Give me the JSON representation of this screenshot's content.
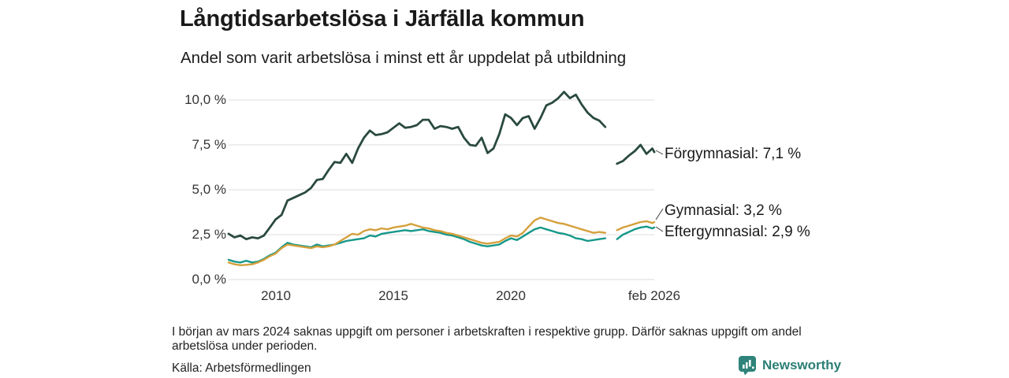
{
  "header": {
    "title": "Långtidsarbetslösa i Järfälla kommun",
    "subtitle": "Andel som varit arbetslösa i minst ett år uppdelat på utbildning"
  },
  "chart_data": {
    "type": "line",
    "title": "Långtidsarbetslösa i Järfälla kommun",
    "subtitle": "Andel som varit arbetslösa i minst ett år uppdelat på utbildning",
    "x_unit": "decimal_year",
    "xlim": [
      2008.0,
      2026.083
    ],
    "ylim": [
      0,
      10.6
    ],
    "grid": "horizontal",
    "legend_position": "right-end-labels",
    "yticks": [
      "10,0 %",
      "7,5 %",
      "5,0 %",
      "2,5 %",
      "0,0 %"
    ],
    "ytick_values": [
      10,
      7.5,
      5,
      2.5,
      0
    ],
    "xticks": [
      "2010",
      "2015",
      "2020",
      "feb 2026"
    ],
    "xtick_values": [
      2010,
      2015,
      2020,
      2026.083
    ],
    "gap_period": "mars 2024",
    "x": [
      2008.0,
      2008.25,
      2008.5,
      2008.75,
      2009.0,
      2009.25,
      2009.5,
      2009.75,
      2010.0,
      2010.25,
      2010.5,
      2010.75,
      2011.0,
      2011.25,
      2011.5,
      2011.75,
      2012.0,
      2012.25,
      2012.5,
      2012.75,
      2013.0,
      2013.25,
      2013.5,
      2013.75,
      2014.0,
      2014.25,
      2014.5,
      2014.75,
      2015.0,
      2015.25,
      2015.5,
      2015.75,
      2016.0,
      2016.25,
      2016.5,
      2016.75,
      2017.0,
      2017.25,
      2017.5,
      2017.75,
      2018.0,
      2018.25,
      2018.5,
      2018.75,
      2019.0,
      2019.25,
      2019.5,
      2019.75,
      2020.0,
      2020.25,
      2020.5,
      2020.75,
      2021.0,
      2021.25,
      2021.5,
      2021.75,
      2022.0,
      2022.25,
      2022.5,
      2022.75,
      2023.0,
      2023.25,
      2023.5,
      2023.75,
      2024.0,
      2024.25,
      2024.5,
      2024.75,
      2025.0,
      2025.25,
      2025.5,
      2025.75,
      2026.0,
      2026.083
    ],
    "series": [
      {
        "name": "Förgymnasial",
        "color": "#2a4a3f",
        "stroke_width": 2.8,
        "end_value": 7.1,
        "end_label": "Förgymnasial: 7,1 %",
        "values": [
          2.55,
          2.35,
          2.45,
          2.25,
          2.35,
          2.3,
          2.45,
          2.9,
          3.35,
          3.6,
          4.4,
          4.55,
          4.7,
          4.85,
          5.1,
          5.55,
          5.6,
          6.1,
          6.55,
          6.5,
          7.0,
          6.5,
          7.3,
          7.9,
          8.3,
          8.05,
          8.1,
          8.2,
          8.45,
          8.7,
          8.45,
          8.5,
          8.6,
          8.9,
          8.9,
          8.4,
          8.55,
          8.5,
          8.4,
          8.5,
          7.9,
          7.5,
          7.45,
          7.9,
          7.05,
          7.3,
          8.1,
          9.2,
          9.0,
          8.6,
          9.0,
          9.1,
          8.4,
          9.0,
          9.7,
          9.85,
          10.1,
          10.45,
          10.1,
          10.3,
          9.75,
          9.3,
          9.0,
          8.85,
          8.5,
          null,
          6.45,
          6.6,
          6.9,
          7.15,
          7.5,
          7.0,
          7.3,
          7.1
        ]
      },
      {
        "name": "Eftergymnasial",
        "color": "#16988a",
        "stroke_width": 2.4,
        "end_value": 2.9,
        "end_label": "Eftergymnasial: 2,9 %",
        "values": [
          1.1,
          1.0,
          0.95,
          1.05,
          0.95,
          1.0,
          1.15,
          1.35,
          1.5,
          1.8,
          2.05,
          1.95,
          1.9,
          1.85,
          1.8,
          1.95,
          1.85,
          1.9,
          1.95,
          2.05,
          2.15,
          2.2,
          2.25,
          2.3,
          2.45,
          2.4,
          2.55,
          2.6,
          2.65,
          2.7,
          2.75,
          2.7,
          2.75,
          2.8,
          2.7,
          2.65,
          2.6,
          2.5,
          2.45,
          2.35,
          2.25,
          2.1,
          2.0,
          1.9,
          1.85,
          1.9,
          1.95,
          2.15,
          2.3,
          2.2,
          2.4,
          2.6,
          2.8,
          2.9,
          2.8,
          2.7,
          2.6,
          2.55,
          2.45,
          2.3,
          2.25,
          2.15,
          2.2,
          2.25,
          2.3,
          null,
          2.25,
          2.5,
          2.65,
          2.8,
          2.9,
          2.95,
          2.85,
          2.9
        ]
      },
      {
        "name": "Gymnasial",
        "color": "#d5a03c",
        "stroke_width": 2.4,
        "end_value": 3.2,
        "end_label": "Gymnasial: 3,2 %",
        "values": [
          0.95,
          0.85,
          0.8,
          0.82,
          0.85,
          0.95,
          1.1,
          1.3,
          1.45,
          1.75,
          1.95,
          1.9,
          1.85,
          1.8,
          1.75,
          1.85,
          1.8,
          1.85,
          1.95,
          2.15,
          2.35,
          2.55,
          2.5,
          2.7,
          2.8,
          2.75,
          2.85,
          2.8,
          2.9,
          2.95,
          3.0,
          3.1,
          3.0,
          2.9,
          2.85,
          2.75,
          2.7,
          2.6,
          2.55,
          2.45,
          2.35,
          2.25,
          2.15,
          2.05,
          2.0,
          2.05,
          2.1,
          2.3,
          2.45,
          2.4,
          2.6,
          2.95,
          3.3,
          3.45,
          3.35,
          3.25,
          3.15,
          3.1,
          3.0,
          2.9,
          2.8,
          2.7,
          2.6,
          2.65,
          2.6,
          null,
          2.75,
          2.9,
          3.0,
          3.1,
          3.2,
          3.25,
          3.15,
          3.2
        ]
      }
    ]
  },
  "footnote": {
    "text": "I början av mars 2024 saknas uppgift om personer i arbetskraften i respektive grupp. Därför saknas uppgift om andel arbetslösa under perioden."
  },
  "source": {
    "label": "Källa: Arbetsförmedlingen"
  },
  "branding": {
    "name": "Newsworthy",
    "icon": "bar-chart-speech-bubble-icon",
    "color": "#2b7f76"
  }
}
